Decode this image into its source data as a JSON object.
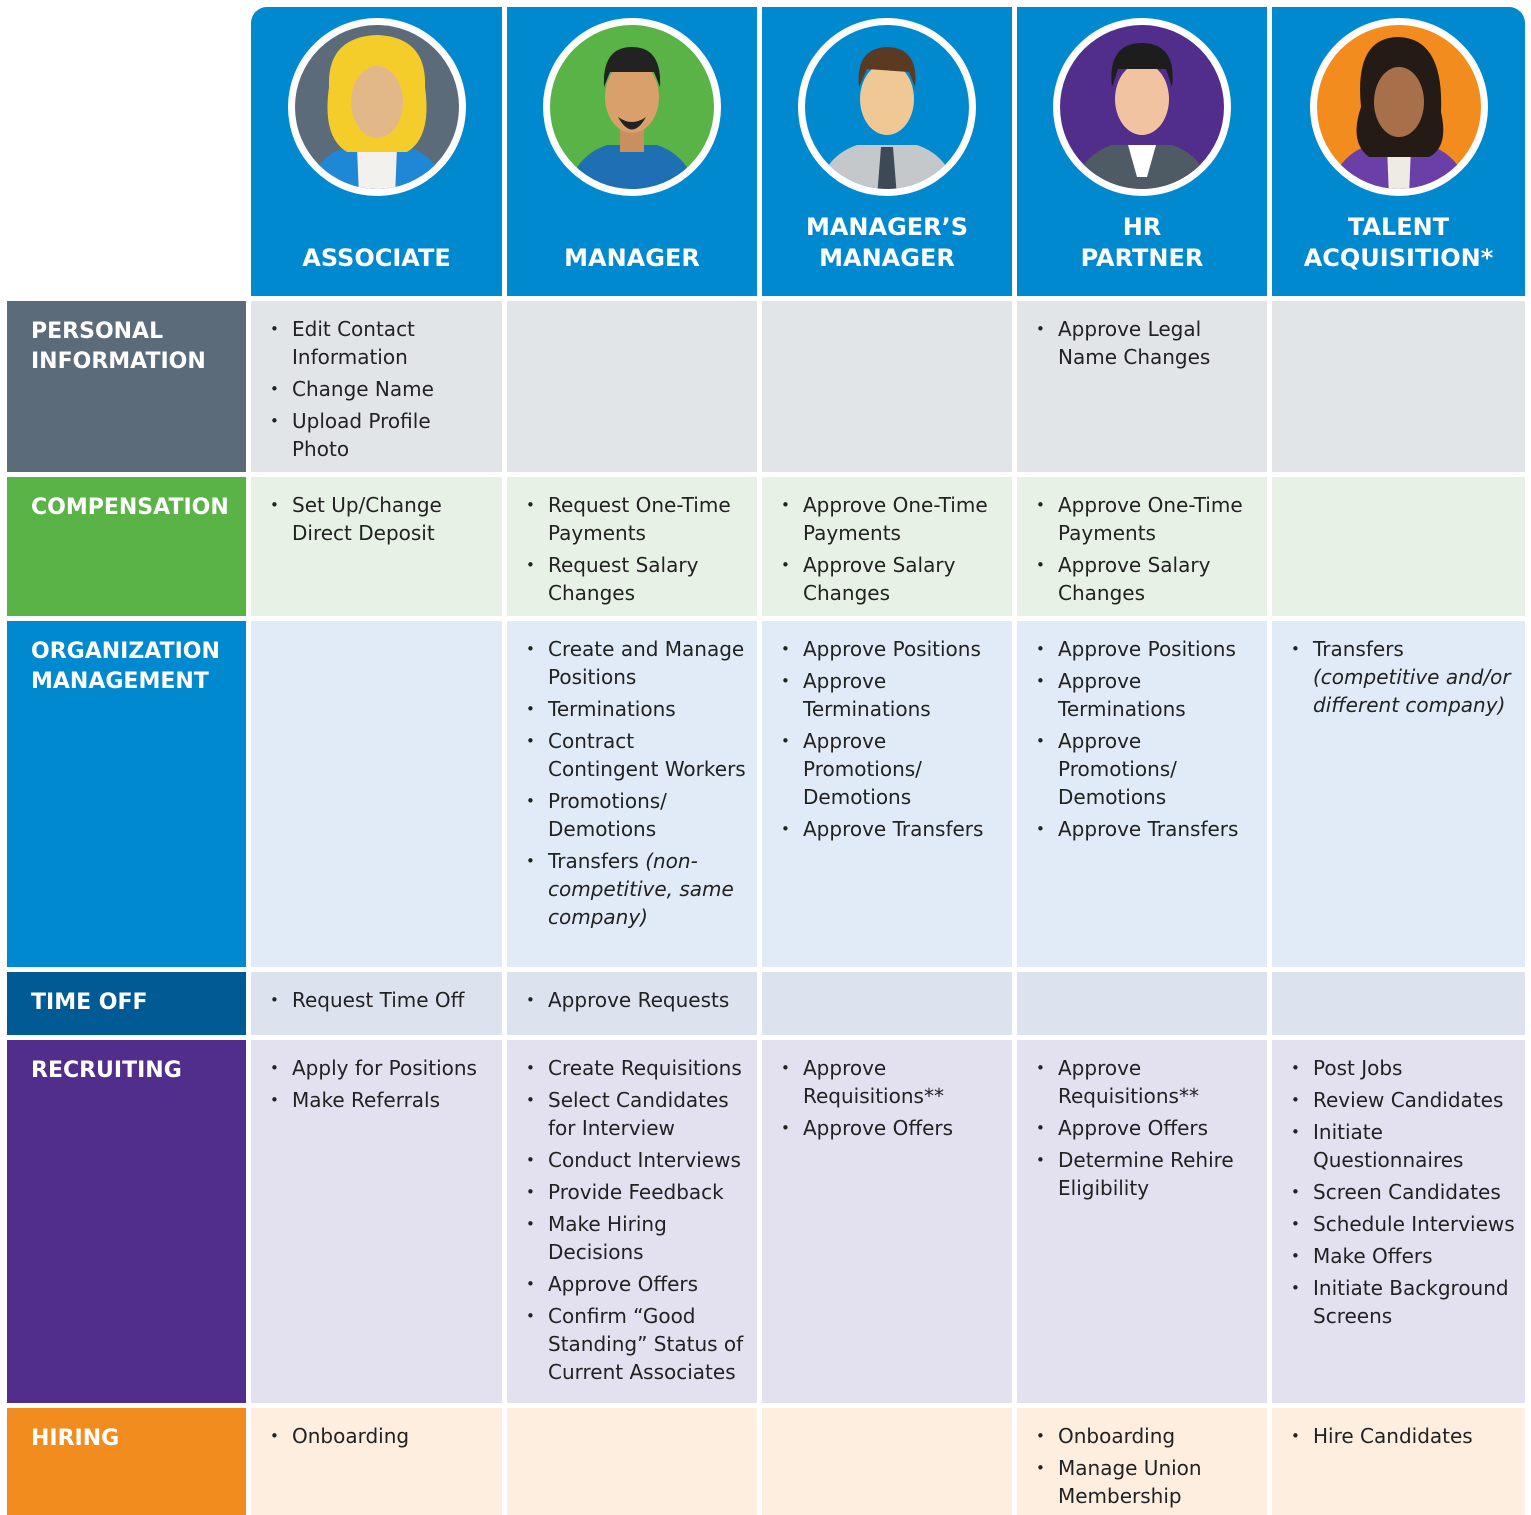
{
  "header": {
    "columns": [
      [
        "ASSOCIATE"
      ],
      [
        "MANAGER"
      ],
      [
        "MANAGER’S",
        "MANAGER"
      ],
      [
        "HR",
        "PARTNER"
      ],
      [
        "TALENT",
        "ACQUISITION*"
      ]
    ]
  },
  "rows": [
    {
      "label": "PERSONAL INFORMATION",
      "cells": [
        [
          "Edit Contact Information",
          "Change Name",
          "Upload Profile Photo"
        ],
        [],
        [],
        [
          "Approve Legal Name Changes"
        ],
        []
      ]
    },
    {
      "label": "COMPENSATION",
      "cells": [
        [
          "Set Up/Change Direct Deposit"
        ],
        [
          "Request One-Time Payments",
          "Request Salary Changes"
        ],
        [
          "Approve One-Time Payments",
          "Approve Salary Changes"
        ],
        [
          "Approve One-Time Payments",
          "Approve Salary Changes"
        ],
        []
      ]
    },
    {
      "label": "ORGANIZATION MANAGEMENT",
      "cells": [
        [],
        [
          "Create and Manage Positions",
          "Terminations",
          "Contract Contingent Workers",
          "Promotions/ Demotions",
          {
            "text": "Transfers",
            "note": "(non-competitive, same company)"
          }
        ],
        [
          "Approve Positions",
          "Approve Terminations",
          "Approve Promotions/ Demotions",
          "Approve Transfers"
        ],
        [
          "Approve Positions",
          "Approve Terminations",
          "Approve Promotions/ Demotions",
          "Approve Transfers"
        ],
        [
          {
            "text": "Transfers",
            "note": "(competitive and/or different company)"
          }
        ]
      ]
    },
    {
      "label": "TIME OFF",
      "cells": [
        [
          "Request Time Off"
        ],
        [
          "Approve Requests"
        ],
        [],
        [],
        []
      ]
    },
    {
      "label": "RECRUITING",
      "cells": [
        [
          "Apply for Positions",
          "Make Referrals"
        ],
        [
          "Create Requisitions",
          "Select Candidates for Interview",
          "Conduct Interviews",
          "Provide Feedback",
          "Make Hiring Decisions",
          "Approve Offers",
          "Confirm “Good Standing” Status of Current Associates"
        ],
        [
          "Approve Requisitions**",
          "Approve Offers"
        ],
        [
          "Approve Requisitions**",
          "Approve Offers",
          "Determine Rehire Eligibility"
        ],
        [
          "Post Jobs",
          "Review Candidates",
          "Initiate Questionnaires",
          "Screen Candidates",
          "Schedule Interviews",
          "Make Offers",
          "Initiate Background Screens"
        ]
      ]
    },
    {
      "label": "HIRING",
      "cells": [
        [
          "Onboarding"
        ],
        [],
        [],
        [
          "Onboarding",
          "Manage Union Membership"
        ],
        [
          "Hire Candidates"
        ]
      ]
    }
  ]
}
